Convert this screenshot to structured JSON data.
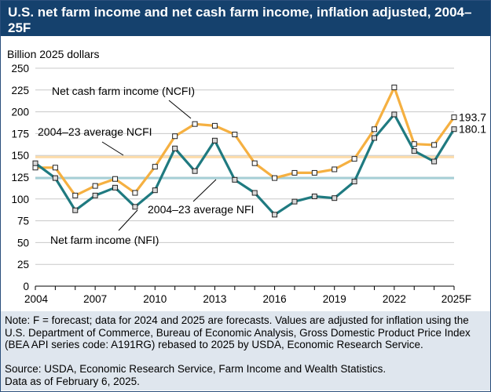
{
  "title": "U.S. net farm income and net cash farm income, inflation adjusted, 2004–25F",
  "unit_label": "Billion 2025 dollars",
  "note": "Note: F = forecast; data for 2024 and 2025 are forecasts. Values are adjusted for inflation using the U.S. Department of Commerce, Bureau of Economic Analysis, Gross Domestic Product Price Index (BEA API series code: A191RG) rebased to 2025 by USDA, Economic Research Service.",
  "source": "Source: USDA, Economic Research Service, Farm Income and Wealth Statistics.",
  "as_of": "Data as of February 6, 2025.",
  "colors": {
    "header": "#15416d",
    "ncfi": "#f5b041",
    "nfi": "#1f7a80",
    "ncfi_avg": "#fcdcab",
    "nfi_avg": "#a6cfd6",
    "notes_bg": "#dfe6ee"
  },
  "chart_data": {
    "type": "line",
    "x": [
      2004,
      2005,
      2006,
      2007,
      2008,
      2009,
      2010,
      2011,
      2012,
      2013,
      2014,
      2015,
      2016,
      2017,
      2018,
      2019,
      2020,
      2021,
      2022,
      2023,
      2024,
      2025
    ],
    "x_tick_values": [
      2004,
      2007,
      2010,
      2013,
      2016,
      2019,
      2022,
      2025
    ],
    "x_tick_labels": [
      "2004",
      "2007",
      "2010",
      "2013",
      "2016",
      "2019",
      "2022",
      "2025F"
    ],
    "ylim": [
      0,
      250
    ],
    "y_ticks": [
      0,
      25,
      50,
      75,
      100,
      125,
      150,
      175,
      200,
      225,
      250
    ],
    "ylabel": "Billion 2025 dollars",
    "grid": true,
    "series": [
      {
        "name": "Net cash farm income (NCFI)",
        "values": [
          136,
          136,
          104,
          115,
          123,
          107,
          137,
          172,
          186,
          184,
          174,
          141,
          124,
          130,
          130,
          134,
          146,
          180,
          228,
          163,
          162,
          193.7
        ]
      },
      {
        "name": "Net farm income (NFI)",
        "values": [
          141,
          124,
          87,
          104,
          113,
          91,
          110,
          158,
          132,
          167,
          122,
          107,
          82,
          97,
          103,
          101,
          120,
          170,
          197,
          155,
          143,
          180.1
        ]
      }
    ],
    "reference_lines": [
      {
        "name": "2004–23 average NCFI",
        "value": 148
      },
      {
        "name": "2004–23 average NFI",
        "value": 124
      }
    ],
    "end_labels": [
      "193.7",
      "180.1"
    ]
  }
}
